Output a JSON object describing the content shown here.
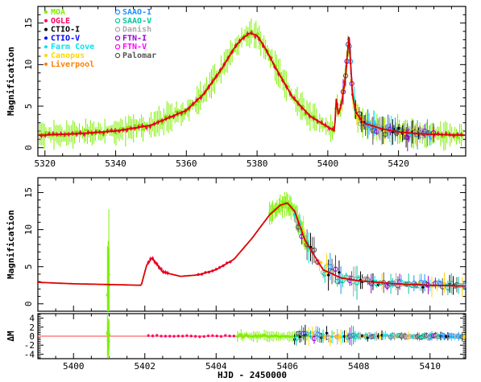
{
  "chart_data": [
    {
      "type": "scatter",
      "panel": "top",
      "ylabel": "Magnification",
      "xlim": [
        5318,
        5439
      ],
      "ylim": [
        -1,
        17
      ],
      "xticks": [
        5320,
        5340,
        5360,
        5380,
        5400,
        5420
      ],
      "yticks": [
        0,
        5,
        10,
        15
      ],
      "legend": [
        {
          "name": "MOA",
          "color": "#7ff000",
          "marker": "dot"
        },
        {
          "name": "OGLE",
          "color": "#ff0066",
          "marker": "dot"
        },
        {
          "name": "CTIO-I",
          "color": "#000000",
          "marker": "dot"
        },
        {
          "name": "CTIO-V",
          "color": "#0000ff",
          "marker": "dot"
        },
        {
          "name": "Farm Cove",
          "color": "#00e5ee",
          "marker": "dot"
        },
        {
          "name": "Canopus",
          "color": "#ffd700",
          "marker": "dot"
        },
        {
          "name": "Liverpool",
          "color": "#ff7f00",
          "marker": "dot"
        },
        {
          "name": "SAAO-I",
          "color": "#1e90ff",
          "marker": "circle"
        },
        {
          "name": "SAAO-V",
          "color": "#00c8a0",
          "marker": "circle"
        },
        {
          "name": "Danish",
          "color": "#aaaaaa",
          "marker": "circle"
        },
        {
          "name": "FTN-I",
          "color": "#9400d3",
          "marker": "circle"
        },
        {
          "name": "FTN-V",
          "color": "#ff00ff",
          "marker": "circle"
        },
        {
          "name": "Palomar",
          "color": "#555555",
          "marker": "circle"
        }
      ],
      "model_color": "#dd0000",
      "model_x": [
        5318,
        5330,
        5340,
        5350,
        5360,
        5365,
        5370,
        5374,
        5376,
        5378,
        5380,
        5382,
        5385,
        5390,
        5395,
        5400,
        5402,
        5402.3,
        5403,
        5404,
        5405,
        5406,
        5407,
        5408,
        5410,
        5415,
        5420,
        5425,
        5430,
        5439
      ],
      "model_y": [
        1.5,
        1.7,
        2.0,
        2.7,
        4.5,
        6.5,
        9.5,
        12.3,
        13.2,
        13.8,
        13.5,
        12.2,
        9.8,
        6.1,
        3.8,
        2.5,
        2.0,
        6.2,
        4.0,
        5.5,
        8.5,
        13.5,
        6.2,
        4.2,
        3.0,
        2.3,
        1.9,
        1.7,
        1.6,
        1.5
      ]
    },
    {
      "type": "scatter",
      "panel": "middle",
      "ylabel": "Magnification",
      "xlim": [
        5399,
        5411
      ],
      "ylim": [
        -1,
        17
      ],
      "xticks": [
        5400,
        5402,
        5404,
        5406,
        5408,
        5410
      ],
      "yticks": [
        0,
        5,
        10,
        15
      ],
      "model_x": [
        5399,
        5400,
        5401,
        5401.9,
        5402.05,
        5402.2,
        5402.5,
        5403,
        5403.5,
        5404,
        5404.5,
        5405,
        5405.5,
        5405.8,
        5406,
        5406.2,
        5406.5,
        5407,
        5407.5,
        5408,
        5409,
        5410,
        5411
      ],
      "model_y": [
        2.9,
        2.7,
        2.6,
        2.5,
        5.2,
        6.2,
        4.3,
        3.7,
        3.9,
        4.6,
        6.0,
        8.8,
        12.0,
        13.3,
        13.6,
        12.5,
        8.5,
        4.6,
        3.5,
        3.1,
        2.7,
        2.5,
        2.4
      ]
    },
    {
      "type": "scatter",
      "panel": "bottom",
      "ylabel": "ΔM",
      "xlabel": "HJD - 2450000",
      "xlim": [
        5399,
        5411
      ],
      "ylim": [
        -5,
        5
      ],
      "xticks": [
        5400,
        5402,
        5404,
        5406,
        5408,
        5410
      ],
      "yticks": [
        -4,
        -2,
        0,
        2,
        4
      ],
      "zero_line_color": "#ff6666"
    }
  ]
}
